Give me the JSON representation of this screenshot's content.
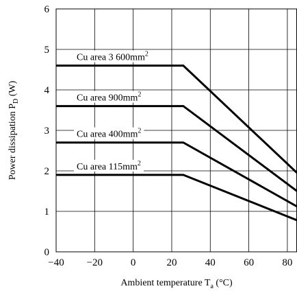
{
  "chart_data": {
    "type": "line",
    "title": "",
    "xlabel": "Ambient temperature T",
    "xlabel_sub": "a",
    "xlabel_unit": " (°C)",
    "ylabel": "Power dissipation P",
    "ylabel_sub": "D",
    "ylabel_unit": " (W)",
    "xlim": [
      -40,
      85
    ],
    "ylim": [
      0,
      6
    ],
    "x_ticks": [
      -40,
      -20,
      0,
      20,
      40,
      60,
      80
    ],
    "x_tick_labels": [
      "−40",
      "−20",
      "0",
      "20",
      "40",
      "60",
      "80"
    ],
    "y_ticks": [
      0,
      1,
      2,
      3,
      4,
      5,
      6
    ],
    "y_tick_labels": [
      "0",
      "1",
      "2",
      "3",
      "4",
      "5",
      "6"
    ],
    "grid": true,
    "series": [
      {
        "name": "Cu area 3 600mm",
        "name_sup": "2",
        "points": [
          [
            -40,
            4.6
          ],
          [
            26,
            4.6
          ],
          [
            85,
            1.95
          ]
        ]
      },
      {
        "name": "Cu area 900mm",
        "name_sup": "2",
        "points": [
          [
            -40,
            3.6
          ],
          [
            26,
            3.6
          ],
          [
            85,
            1.5
          ]
        ]
      },
      {
        "name": "Cu area 400mm",
        "name_sup": "2",
        "points": [
          [
            -40,
            2.7
          ],
          [
            26,
            2.7
          ],
          [
            85,
            1.12
          ]
        ]
      },
      {
        "name": "Cu area 115mm",
        "name_sup": "2",
        "points": [
          [
            -40,
            1.9
          ],
          [
            26,
            1.9
          ],
          [
            85,
            0.78
          ]
        ]
      }
    ]
  }
}
